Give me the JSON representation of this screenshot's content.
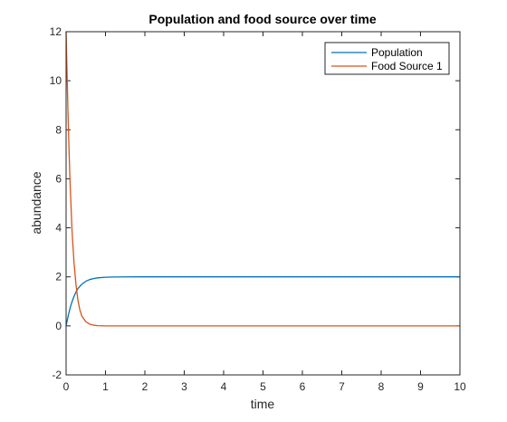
{
  "chart_data": {
    "type": "line",
    "title": "Population and food source over time",
    "xlabel": "time",
    "ylabel": "abundance",
    "xlim": [
      0,
      10
    ],
    "ylim": [
      -2,
      12
    ],
    "xticks": [
      0,
      1,
      2,
      3,
      4,
      5,
      6,
      7,
      8,
      9,
      10
    ],
    "yticks": [
      -2,
      0,
      2,
      4,
      6,
      8,
      10,
      12
    ],
    "grid": false,
    "legend_position": "top-right",
    "series": [
      {
        "name": "Population",
        "color": "#0072BD",
        "x": [
          0,
          0.05,
          0.1,
          0.15,
          0.2,
          0.25,
          0.3,
          0.4,
          0.5,
          0.6,
          0.7,
          0.8,
          1.0,
          1.25,
          1.5,
          2,
          3,
          4,
          5,
          6,
          7,
          8,
          9,
          10
        ],
        "y": [
          0,
          0.38,
          0.72,
          0.98,
          1.2,
          1.38,
          1.52,
          1.7,
          1.82,
          1.89,
          1.93,
          1.96,
          1.985,
          1.995,
          1.998,
          2,
          2,
          2,
          2,
          2,
          2,
          2,
          2,
          2
        ]
      },
      {
        "name": "Food Source 1",
        "color": "#D95319",
        "x": [
          0,
          0.02,
          0.05,
          0.08,
          0.1,
          0.13,
          0.15,
          0.2,
          0.25,
          0.3,
          0.35,
          0.4,
          0.5,
          0.6,
          0.7,
          0.8,
          1.0,
          1.5,
          2,
          3,
          4,
          5,
          6,
          7,
          8,
          9,
          10
        ],
        "y": [
          12,
          10.6,
          8.6,
          6.9,
          5.9,
          4.7,
          3.9,
          2.6,
          1.7,
          1.05,
          0.65,
          0.4,
          0.17,
          0.07,
          0.03,
          0.01,
          0,
          0,
          0,
          0,
          0,
          0,
          0,
          0,
          0,
          0,
          0
        ]
      }
    ]
  }
}
